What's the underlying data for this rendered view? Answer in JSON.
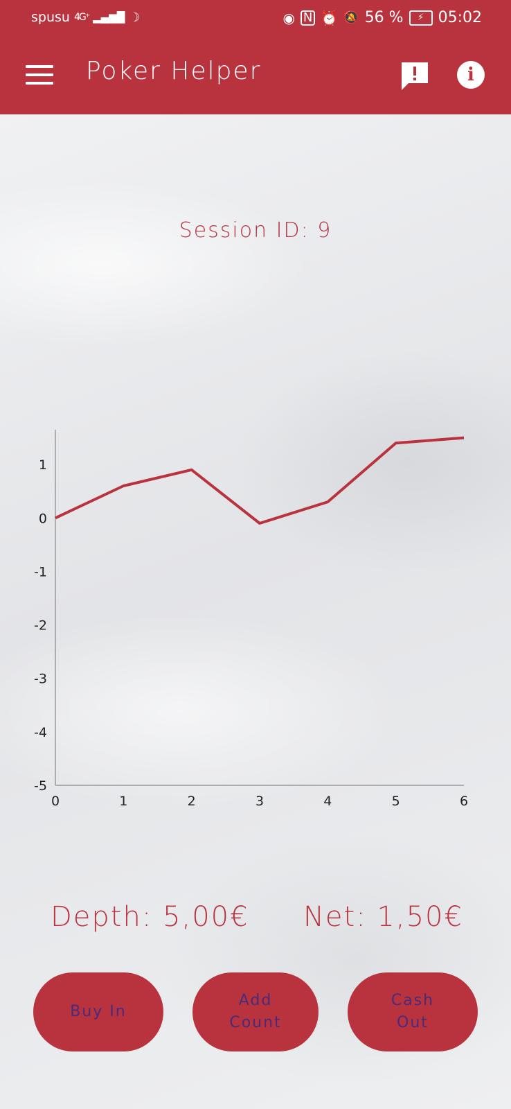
{
  "status_bar": {
    "carrier": "spusu",
    "network": "4G⁺",
    "battery": "56 %",
    "time": "05:02"
  },
  "app_bar": {
    "title": "Poker Helper",
    "menu_icon": "hamburger-menu-icon",
    "feedback_icon": "feedback-icon",
    "info_icon": "info-icon"
  },
  "session": {
    "label": "Session ID: 9"
  },
  "chart_data": {
    "type": "line",
    "x": [
      0,
      1,
      2,
      3,
      4,
      5,
      6
    ],
    "values": [
      0,
      0.6,
      0.9,
      -0.1,
      0.3,
      1.4,
      1.5
    ],
    "xlim": [
      0,
      6
    ],
    "ylim": [
      -5,
      1.65
    ],
    "x_ticks": [
      "0",
      "1",
      "2",
      "3",
      "4",
      "5",
      "6"
    ],
    "y_ticks": [
      "1",
      "0",
      "-1",
      "-2",
      "-3",
      "-4",
      "-5"
    ],
    "y_tick_values": [
      1,
      0,
      -1,
      -2,
      -3,
      -4,
      -5
    ],
    "line_color": "#b8333e",
    "grid": false
  },
  "stats": {
    "depth": "Depth: 5,00€",
    "net": "Net: 1,50€"
  },
  "actions": {
    "buy_in": "Buy In",
    "add_count": "Add\nCount",
    "cash_out": "Cash\nOut"
  },
  "colors": {
    "accent": "#b8333e",
    "button_text": "#4a2a7a"
  }
}
